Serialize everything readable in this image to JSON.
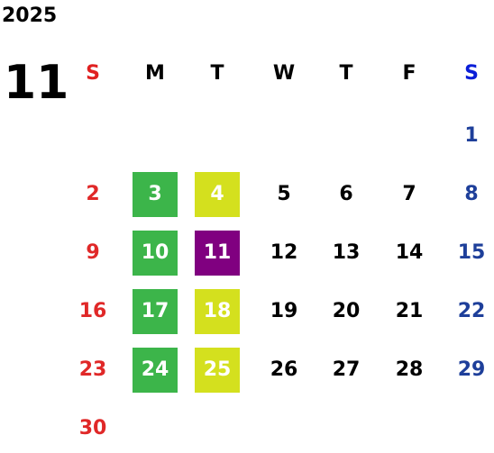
{
  "year": "2025",
  "month": "11",
  "weekdays": [
    "S",
    "M",
    "T",
    "W",
    "T",
    "F",
    "S"
  ],
  "header_colors": [
    "#e02020",
    "#000000",
    "#000000",
    "#000000",
    "#000000",
    "#000000",
    "#0a1ed8"
  ],
  "date_colors": [
    "#e02828",
    "#000000",
    "#000000",
    "#000000",
    "#000000",
    "#000000",
    "#1e3f9a"
  ],
  "highlight_text_color": "#ffffff",
  "weeks": [
    [
      null,
      null,
      null,
      null,
      null,
      null,
      1
    ],
    [
      2,
      {
        "day": 3,
        "color": "#3cb54a"
      },
      {
        "day": 4,
        "color": "#d4e01e"
      },
      5,
      6,
      7,
      8
    ],
    [
      9,
      {
        "day": 10,
        "color": "#3cb54a"
      },
      {
        "day": 11,
        "color": "#800080"
      },
      12,
      13,
      14,
      15
    ],
    [
      16,
      {
        "day": 17,
        "color": "#3cb54a"
      },
      {
        "day": 18,
        "color": "#d4e01e"
      },
      19,
      20,
      21,
      22
    ],
    [
      23,
      {
        "day": 24,
        "color": "#3cb54a"
      },
      {
        "day": 25,
        "color": "#d4e01e"
      },
      26,
      27,
      28,
      29
    ],
    [
      30,
      null,
      null,
      null,
      null,
      null,
      null
    ]
  ]
}
